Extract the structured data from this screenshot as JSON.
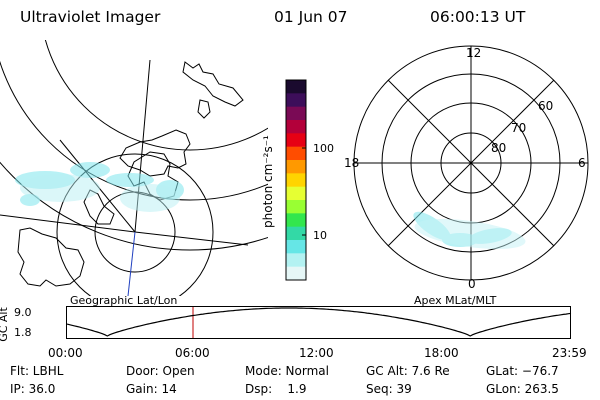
{
  "header": {
    "instrument": "Ultraviolet Imager",
    "date": "01 Jun 07",
    "time": "06:00:13 UT"
  },
  "left_map": {
    "label": "Geographic Lat/Lon"
  },
  "right_map": {
    "label": "Apex MLat/MLT",
    "mlt_labels": {
      "top": "12",
      "left": "18",
      "right": "6",
      "bottom": "0"
    },
    "lat_labels": [
      "60",
      "70",
      "80"
    ]
  },
  "colorbar": {
    "unit_label": "photon cm⁻²s⁻¹",
    "tick_labels": [
      "100",
      "10"
    ],
    "colors": [
      "#1a0a2e",
      "#3d0e5a",
      "#7a0a55",
      "#b3003a",
      "#e60014",
      "#ff4d00",
      "#ff9900",
      "#ffd400",
      "#e6ff33",
      "#99ff33",
      "#33e64d",
      "#33d9a6",
      "#66e6e6",
      "#b3f2f2",
      "#e6f7f7"
    ]
  },
  "altitude_plot": {
    "ylabel": "GC Alt",
    "ytick_labels": [
      "9.0",
      "1.8"
    ],
    "xtick_labels": [
      "00:00",
      "06:00",
      "12:00",
      "18:00",
      "23:59"
    ],
    "marker_time_hours": 6.0
  },
  "status": {
    "filter": "Flt: LBHL",
    "door": "Door: Open",
    "mode": "Mode: Normal",
    "gc_alt": "GC Alt: 7.6 Re",
    "glat": "GLat: −76.7",
    "ip": "IP: 36.0",
    "gain": "Gain: 14",
    "dsp": "Dsp:    1.9",
    "seq": "Seq: 39",
    "glon": "GLon: 263.5"
  }
}
